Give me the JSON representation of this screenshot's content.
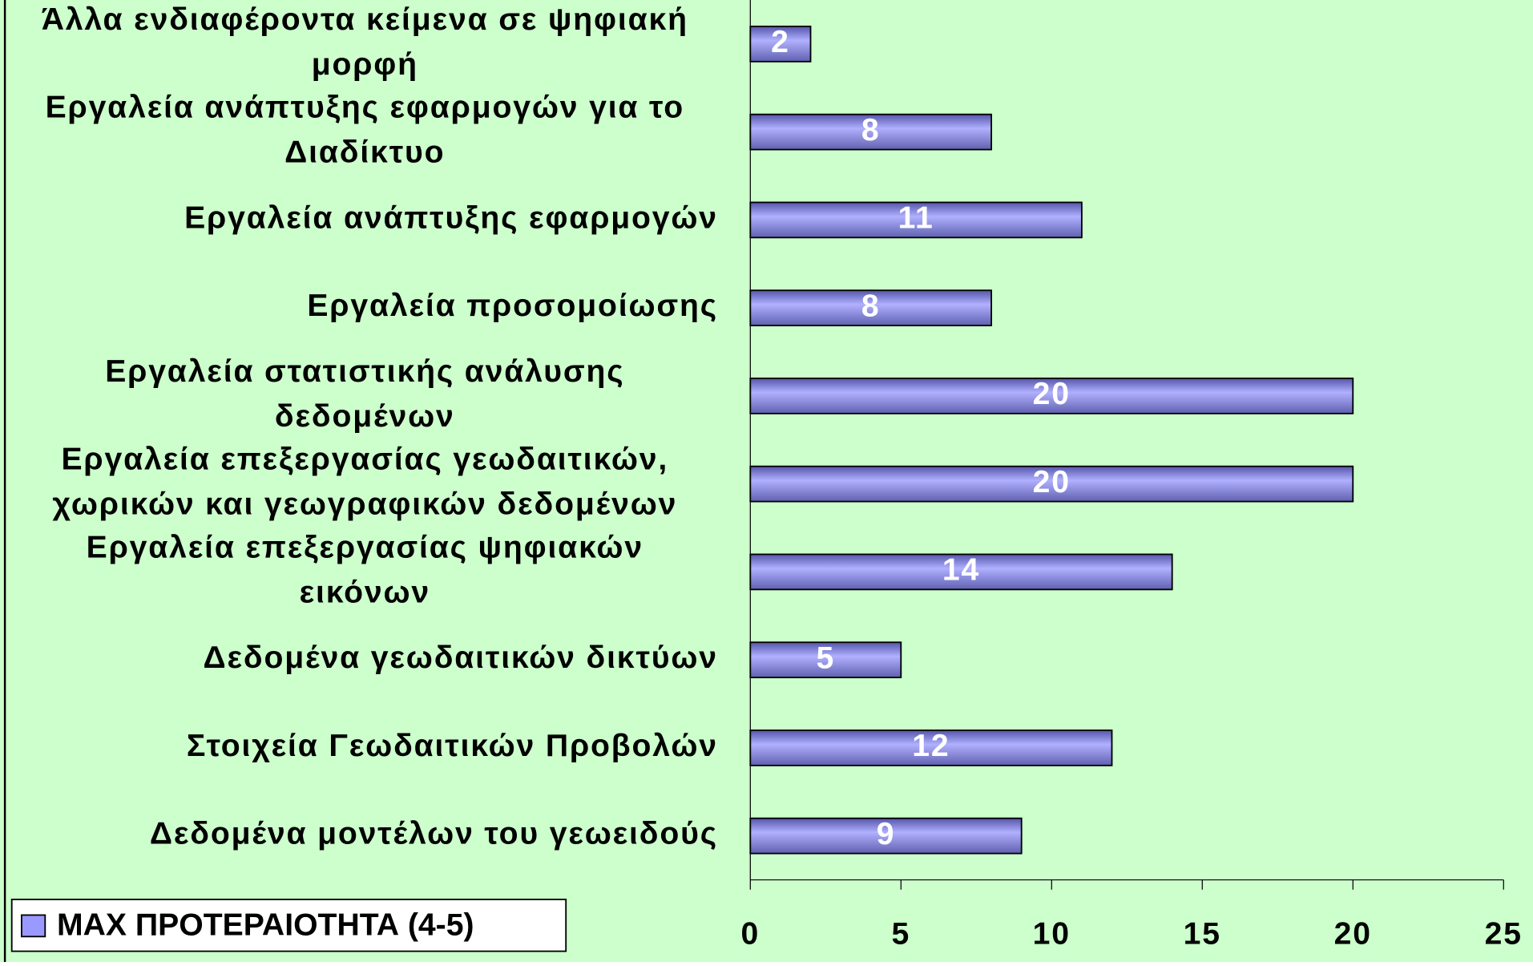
{
  "chart_data": {
    "type": "bar",
    "orientation": "horizontal",
    "categories": [
      "Άλλα ενδιαφέροντα κείμενα σε ψηφιακή\nμορφή",
      "Εργαλεία ανάπτυξης εφαρμογών για το\nΔιαδίκτυο",
      "Εργαλεία ανάπτυξης εφαρμογών",
      "Εργαλεία προσομοίωσης",
      "Εργαλεία στατιστικής ανάλυσης\nδεδομένων",
      "Εργαλεία επεξεργασίας γεωδαιτικών,\nχωρικών και γεωγραφικών δεδομένων",
      "Εργαλεία επεξεργασίας ψηφιακών\nεικόνων",
      "Δεδομένα γεωδαιτικών δικτύων",
      "Στοιχεία Γεωδαιτικών Προβολών",
      "Δεδομένα μοντέλων του γεωειδούς"
    ],
    "series": [
      {
        "name": "ΜΑΧ ΠΡΟΤΕΡΑΙΟΤΗΤΑ (4-5)",
        "color": "#9999ff",
        "values": [
          2,
          8,
          11,
          8,
          20,
          20,
          14,
          5,
          12,
          9
        ]
      }
    ],
    "xlim": [
      0,
      25
    ],
    "xticks": [
      0,
      5,
      10,
      15,
      20,
      25
    ],
    "legend": "bottom-left",
    "background": "#ccffcc"
  }
}
